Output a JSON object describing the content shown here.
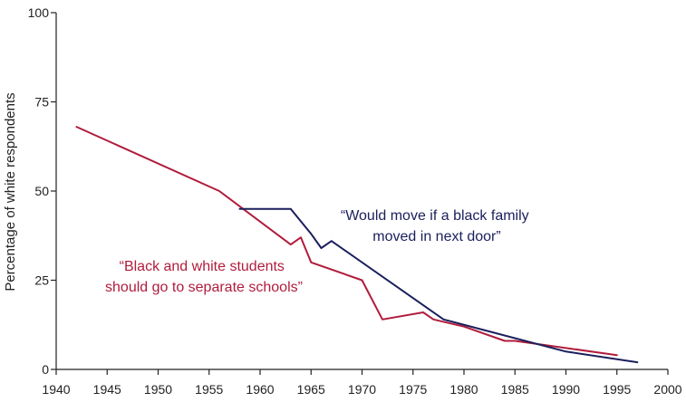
{
  "chart_data": {
    "type": "line",
    "title": "",
    "xlabel": "",
    "ylabel": "Percentage of white respondents",
    "xlim": [
      1940,
      2000
    ],
    "ylim": [
      0,
      100
    ],
    "x_ticks": [
      1940,
      1945,
      1950,
      1955,
      1960,
      1965,
      1970,
      1975,
      1980,
      1985,
      1990,
      1995,
      2000
    ],
    "y_ticks": [
      0,
      25,
      50,
      75,
      100
    ],
    "grid": false,
    "legend": "none",
    "series": [
      {
        "name": "“Black and white students should go to separate schools”",
        "color": "#b01c3c",
        "x": [
          1942,
          1956,
          1963,
          1964,
          1965,
          1970,
          1972,
          1976,
          1977,
          1980,
          1984,
          1985,
          1995
        ],
        "y": [
          68,
          50,
          35,
          37,
          30,
          25,
          14,
          16,
          14,
          12,
          8,
          8,
          4
        ]
      },
      {
        "name": "“Would move if a black family moved in next door”",
        "color": "#1a1f5c",
        "x": [
          1958,
          1963,
          1965,
          1966,
          1967,
          1978,
          1990,
          1997
        ],
        "y": [
          45,
          45,
          38,
          34,
          36,
          14,
          5,
          2
        ]
      }
    ],
    "annotations": [
      {
        "lines": [
          "“Would move if a black family",
          "moved in next door”"
        ],
        "color": "#1a1f5c"
      },
      {
        "lines": [
          "“Black and white students",
          "should go to separate schools”"
        ],
        "color": "#b01c3c"
      }
    ]
  }
}
